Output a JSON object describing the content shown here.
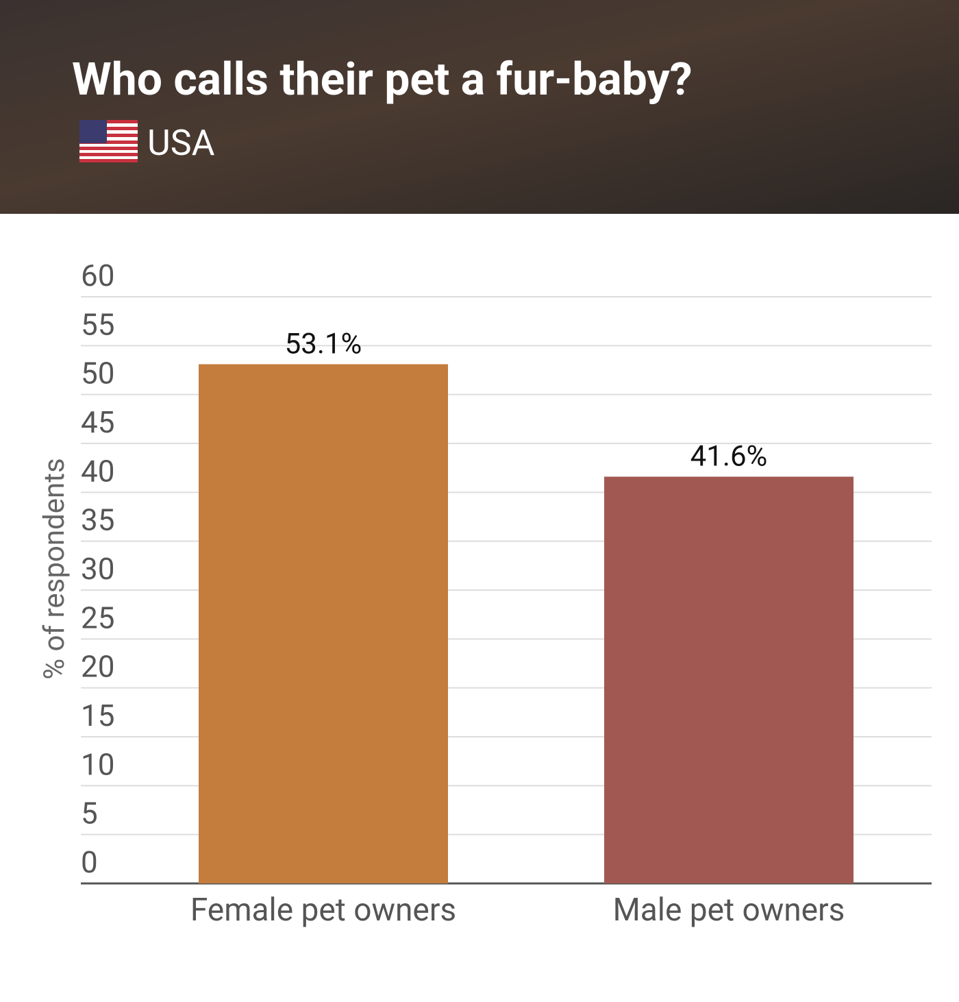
{
  "chart_data": {
    "type": "bar",
    "title": "Who calls their pet a fur-baby?",
    "subtitle": "USA",
    "y_label": "% of respondents",
    "categories": [
      "Female pet owners",
      "Male pet owners"
    ],
    "values": [
      53.1,
      41.6
    ],
    "value_labels": [
      "53.1%",
      "41.6%"
    ],
    "colors": [
      "#c47d3d",
      "#a25852"
    ],
    "ylim": [
      0,
      60
    ],
    "yticks": [
      0,
      5,
      10,
      15,
      20,
      25,
      30,
      35,
      40,
      45,
      50,
      55,
      60
    ],
    "grid": true
  }
}
